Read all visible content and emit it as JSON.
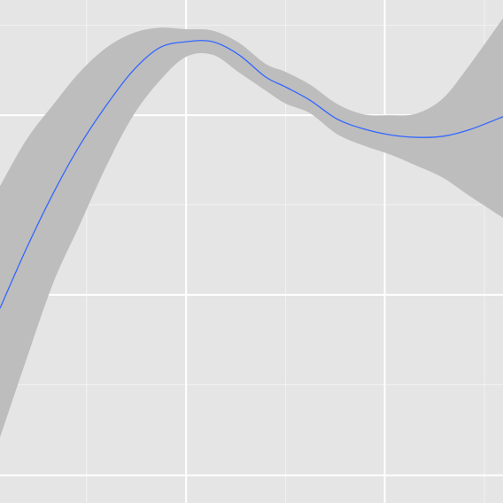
{
  "chart_data": {
    "type": "area",
    "title": "",
    "xlabel": "",
    "ylabel": "",
    "grid": true,
    "background": "#E5E5E5",
    "grid_major_color": "#FFFFFF",
    "grid_minor_color": "#F2F2F2",
    "ribbon_color": "#BDBDBD",
    "line_color": "#3366FF",
    "xlim": [
      0,
      10
    ],
    "ylim": [
      0,
      10
    ],
    "x_major_ticks": [
      3.7,
      7.65
    ],
    "x_minor_ticks": [
      1.72,
      5.68,
      9.63
    ],
    "y_major_ticks": [
      0.55,
      4.14,
      7.71
    ],
    "y_minor_ticks": [
      2.35,
      5.93,
      9.5
    ],
    "series": [
      {
        "x": [
          0,
          0.53,
          1.06,
          1.58,
          2.11,
          2.64,
          3.17,
          3.7,
          4.23,
          4.75,
          5.28,
          5.68,
          6.16,
          6.69,
          7.22,
          7.75,
          8.27,
          8.8,
          9.33,
          10
        ],
        "y": [
          3.87,
          5.07,
          6.16,
          7.1,
          7.9,
          8.59,
          9.05,
          9.17,
          9.17,
          8.91,
          8.47,
          8.27,
          8.01,
          7.64,
          7.44,
          7.32,
          7.27,
          7.29,
          7.42,
          7.68
        ],
        "lower": [
          1.3,
          2.87,
          4.38,
          5.52,
          6.69,
          7.69,
          8.39,
          8.87,
          8.91,
          8.56,
          8.2,
          7.94,
          7.75,
          7.34,
          7.11,
          6.93,
          6.71,
          6.47,
          6.11,
          5.67
        ],
        "upper": [
          6.3,
          7.23,
          7.92,
          8.56,
          9.05,
          9.34,
          9.45,
          9.42,
          9.39,
          9.15,
          8.73,
          8.57,
          8.32,
          7.94,
          7.73,
          7.71,
          7.74,
          8.04,
          8.7,
          9.64
        ]
      }
    ]
  }
}
